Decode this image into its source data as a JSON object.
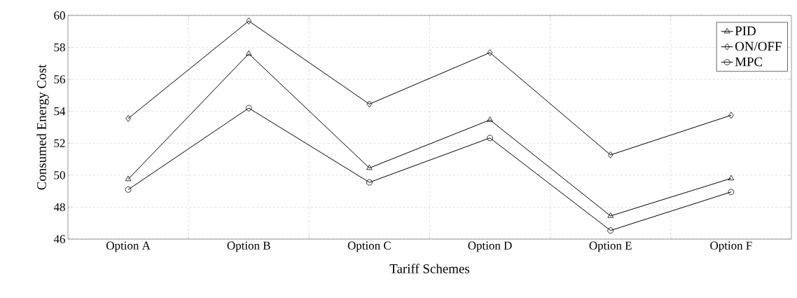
{
  "chart_data": {
    "type": "line",
    "xlabel": "Tariff Schemes",
    "ylabel": "Consumed Energy Cost",
    "categories": [
      "Option A",
      "Option B",
      "Option C",
      "Option D",
      "Option E",
      "Option F"
    ],
    "series": [
      {
        "name": "PID",
        "color": "#000000",
        "marker": "triangle",
        "values": [
          49.75,
          57.6,
          50.45,
          53.46,
          47.45,
          49.8
        ]
      },
      {
        "name": "ON/OFF",
        "color": "#000000",
        "marker": "diamond",
        "values": [
          53.55,
          59.65,
          54.45,
          57.67,
          51.27,
          53.75
        ]
      },
      {
        "name": "MPC",
        "color": "#000000",
        "marker": "circle",
        "values": [
          49.1,
          54.2,
          49.55,
          52.33,
          46.54,
          48.95
        ]
      }
    ],
    "ylim": [
      46,
      60
    ],
    "yticks": [
      46,
      48,
      50,
      52,
      54,
      56,
      58,
      60
    ],
    "grid": true,
    "legend": "top right",
    "line_style": "solid"
  }
}
